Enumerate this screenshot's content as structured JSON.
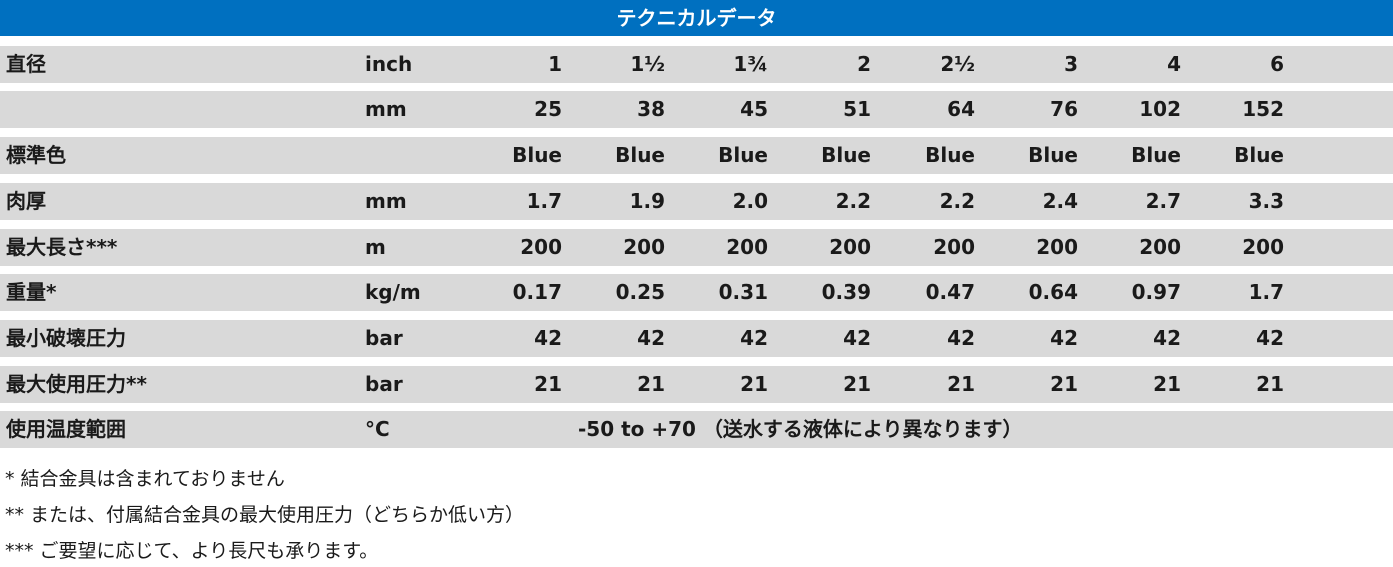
{
  "title": "テクニカルデータ",
  "rows": [
    {
      "label": "直径",
      "unit": "inch",
      "values": [
        "1",
        "1½",
        "1¾",
        "2",
        "2½",
        "3",
        "4",
        "6"
      ]
    },
    {
      "label": "",
      "unit": "mm",
      "values": [
        "25",
        "38",
        "45",
        "51",
        "64",
        "76",
        "102",
        "152"
      ]
    },
    {
      "label": "標準色",
      "unit": "",
      "values": [
        "Blue",
        "Blue",
        "Blue",
        "Blue",
        "Blue",
        "Blue",
        "Blue",
        "Blue"
      ]
    },
    {
      "label": "肉厚",
      "unit": "mm",
      "values": [
        "1.7",
        "1.9",
        "2.0",
        "2.2",
        "2.2",
        "2.4",
        "2.7",
        "3.3"
      ]
    },
    {
      "label": "最大長さ***",
      "unit": "m",
      "values": [
        "200",
        "200",
        "200",
        "200",
        "200",
        "200",
        "200",
        "200"
      ]
    },
    {
      "label": "重量*",
      "unit": "kg/m",
      "values": [
        "0.17",
        "0.25",
        "0.31",
        "0.39",
        "0.47",
        "0.64",
        "0.97",
        "1.7"
      ]
    },
    {
      "label": "最小破壊圧力",
      "unit": "bar",
      "values": [
        "42",
        "42",
        "42",
        "42",
        "42",
        "42",
        "42",
        "42"
      ]
    },
    {
      "label": "最大使用圧力**",
      "unit": "bar",
      "values": [
        "21",
        "21",
        "21",
        "21",
        "21",
        "21",
        "21",
        "21"
      ]
    }
  ],
  "temperature_row": {
    "label": "使用温度範囲",
    "unit": "°C",
    "text": "-50 to +70 （送水する液体により異なります）"
  },
  "notes": [
    "* 結合金具は含まれておりません",
    "** または、付属結合金具の最大使用圧力（どちらか低い方）",
    "*** ご要望に応じて、より長尺も承ります。"
  ]
}
